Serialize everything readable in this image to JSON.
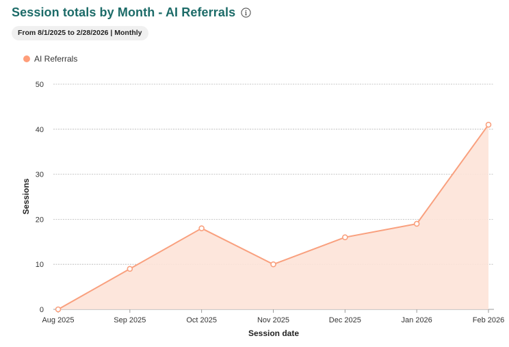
{
  "header": {
    "title": "Session totals by Month - AI Referrals",
    "date_range": "From 8/1/2025 to 2/28/2026 | Monthly",
    "info_icon": "info-icon"
  },
  "colors": {
    "title": "#1c6b68",
    "series_line": "#f9a07e",
    "series_fill": "#fde3d8",
    "legend_dot": "#ff9e7a"
  },
  "chart_data": {
    "type": "area",
    "title": "Session totals by Month - AI Referrals",
    "xlabel": "Session date",
    "ylabel": "Sessions",
    "categories": [
      "Aug 2025",
      "Sep 2025",
      "Oct 2025",
      "Nov 2025",
      "Dec 2025",
      "Jan 2026",
      "Feb 2026"
    ],
    "series": [
      {
        "name": "AI Referrals",
        "values": [
          0,
          9,
          18,
          10,
          16,
          19,
          41
        ]
      }
    ],
    "ylim": [
      0,
      50
    ],
    "yticks": [
      0,
      10,
      20,
      30,
      40,
      50
    ],
    "grid": true,
    "legend": "top-left"
  }
}
